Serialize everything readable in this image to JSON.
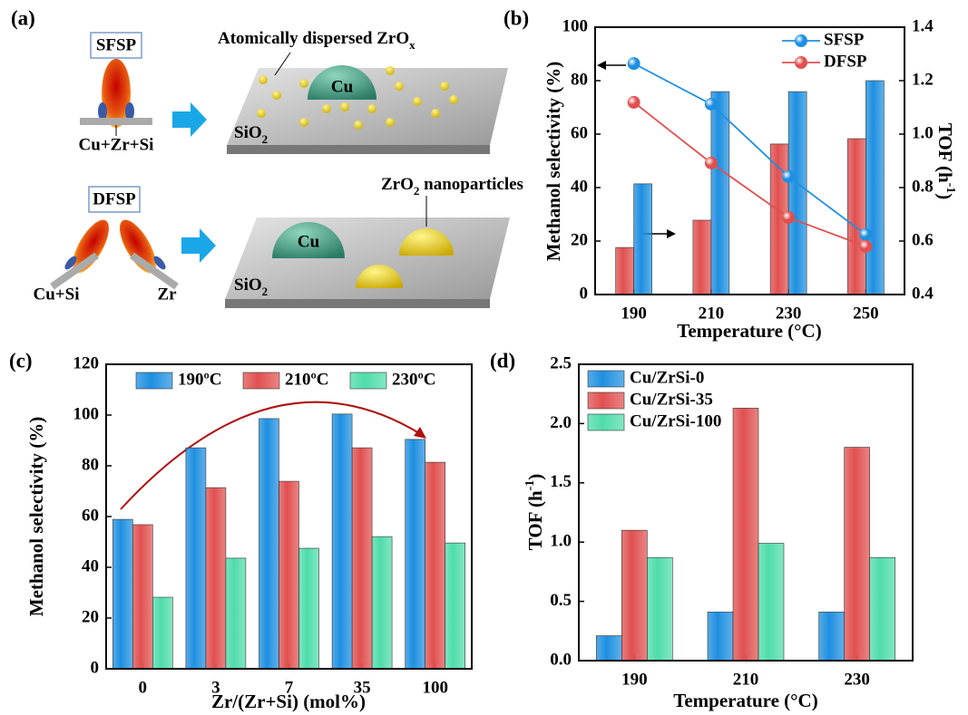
{
  "diagram": {
    "panel_label": "(a)",
    "sfsp": "SFSP",
    "sfsp_feed": "Cu+Zr+Si",
    "zrox": {
      "text": "Atomically dispersed ZrO",
      "sub": "x"
    },
    "cu_top": "Cu",
    "sio2_top": {
      "text": "SiO",
      "sub": "2"
    },
    "dfsp": "DFSP",
    "dfsp_feed1": "Cu+Si",
    "dfsp_feed2": "Zr",
    "zro2": {
      "text": "ZrO",
      "sub": "2",
      "rest": " nanoparticles"
    },
    "cu_bottom": "Cu",
    "sio2_bottom": {
      "text": "SiO",
      "sub": "2"
    }
  },
  "chart_data": [
    {
      "type": "bar",
      "panel_label": "(b)",
      "x_label": "Temperature (°C)",
      "y_label": "Methanol selectivity (%)",
      "y2_label": {
        "text": "TOF (h",
        "sup": "-1",
        "rest": ")"
      },
      "categories": [
        "190",
        "210",
        "230",
        "250"
      ],
      "series": [
        {
          "type": "bar",
          "axis": "y2",
          "color": "#e0504f",
          "values": [
            0.576,
            0.678,
            0.963,
            0.983
          ]
        },
        {
          "type": "bar",
          "axis": "y2",
          "color": "#1e8fe0",
          "values": [
            0.814,
            1.159,
            1.159,
            1.2
          ]
        },
        {
          "type": "line",
          "name": "SFSP",
          "color": "#1e8fe0",
          "values": [
            86.4,
            71.2,
            44.1,
            22.4
          ]
        },
        {
          "type": "line",
          "name": "DFSP",
          "color": "#e0504f",
          "values": [
            71.9,
            49.2,
            28.8,
            18.0
          ]
        }
      ],
      "ylim": [
        0,
        100
      ],
      "yticks": [
        0,
        20,
        40,
        60,
        80,
        100
      ],
      "y2lim": [
        0.4,
        1.4
      ],
      "y2ticks": [
        0.4,
        0.6,
        0.8,
        {
          "value": 1,
          "label": "1.0"
        },
        1.2,
        1.4
      ],
      "legend": "upper right"
    },
    {
      "type": "bar",
      "panel_label": "(c)",
      "x_label": "Zr/(Zr+Si) (mol%)",
      "y_label": "Methanol selectivity (%)",
      "categories": [
        "0",
        "3",
        "7",
        "35",
        "100"
      ],
      "series": [
        {
          "name": "190ºC",
          "color": "#1e8fe0",
          "values": [
            58.9,
            87.1,
            98.6,
            100.4,
            90.4
          ]
        },
        {
          "name": "210ºC",
          "color": "#e0504f",
          "values": [
            56.8,
            71.4,
            73.9,
            87.1,
            81.4
          ]
        },
        {
          "name": "230ºC",
          "color": "#4fdcaa",
          "values": [
            28.2,
            43.6,
            47.5,
            52.1,
            49.6
          ]
        }
      ],
      "ylim": [
        0,
        120
      ],
      "yticks": [
        0,
        20,
        40,
        60,
        80,
        100,
        120
      ],
      "legend": "upper center"
    },
    {
      "type": "bar",
      "panel_label": "(d)",
      "x_label": "Temperature (°C)",
      "y_label": {
        "text": "TOF (h",
        "sup": "-1",
        "rest": ")"
      },
      "categories": [
        "190",
        "210",
        "230"
      ],
      "series": [
        {
          "name": "Cu/ZrSi-0",
          "color": "#1e8fe0",
          "values": [
            0.21,
            0.41,
            0.41
          ]
        },
        {
          "name": "Cu/ZrSi-35",
          "color": "#e0504f",
          "values": [
            1.1,
            2.13,
            1.8
          ]
        },
        {
          "name": "Cu/ZrSi-100",
          "color": "#4fdcaa",
          "values": [
            0.87,
            0.99,
            0.87
          ]
        }
      ],
      "ylim": [
        0,
        2.5
      ],
      "yticks": [
        {
          "value": 0,
          "label": "0.0"
        },
        0.5,
        {
          "value": 1,
          "label": "1.0"
        },
        1.5,
        {
          "value": 2,
          "label": "2.0"
        },
        2.5
      ],
      "legend": "upper left"
    }
  ]
}
